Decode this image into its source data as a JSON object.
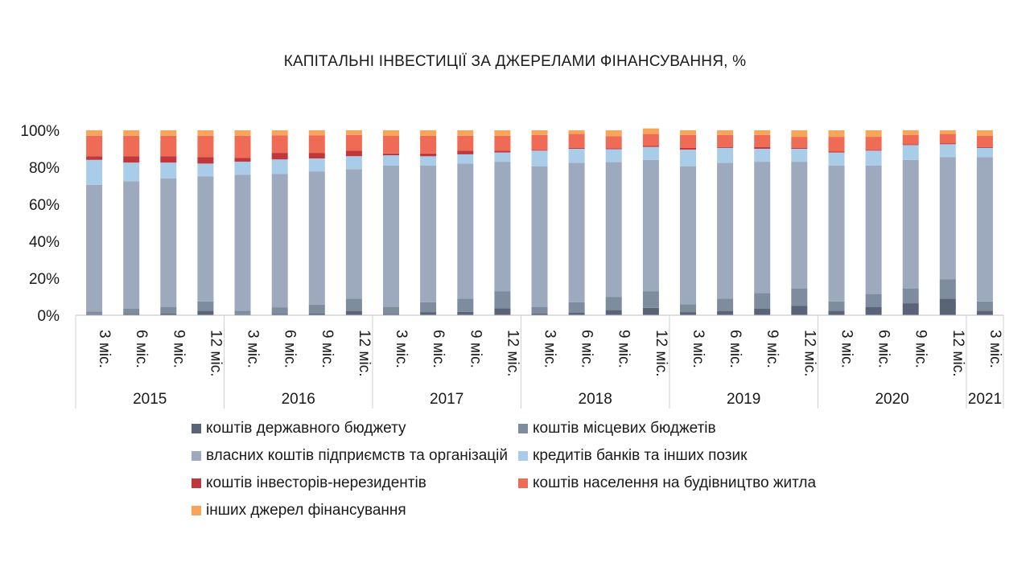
{
  "chart_data": {
    "type": "bar",
    "stacked": true,
    "percent": true,
    "title": "КАПІТАЛЬНІ ІНВЕСТИЦІЇ ЗА ДЖЕРЕЛАМИ ФІНАНСУВАННЯ, %",
    "yticks": [
      "0%",
      "20%",
      "40%",
      "60%",
      "80%",
      "100%"
    ],
    "ylim": [
      0,
      100
    ],
    "legend_position": "bottom",
    "years": [
      {
        "label": "2015",
        "count": 4
      },
      {
        "label": "2016",
        "count": 4
      },
      {
        "label": "2017",
        "count": 4
      },
      {
        "label": "2018",
        "count": 4
      },
      {
        "label": "2019",
        "count": 4
      },
      {
        "label": "2020",
        "count": 4
      },
      {
        "label": "2021",
        "count": 1
      }
    ],
    "categories": [
      "3 міс.",
      "6 міс.",
      "9 міс.",
      "12 міс.",
      "3 міс.",
      "6 міс.",
      "9 міс.",
      "12 міс.",
      "3 міс.",
      "6 міс.",
      "9 міс.",
      "12 міс.",
      "3 міс.",
      "6 міс.",
      "9 міс.",
      "12 міс.",
      "3 міс.",
      "6 міс.",
      "9 міс.",
      "12 міс.",
      "3 міс.",
      "6 міс.",
      "9 міс.",
      "12 міс.",
      "3 міс."
    ],
    "series": [
      {
        "name": "коштів державного бюджету",
        "color": "#5a6478",
        "values": [
          0.5,
          0.8,
          1.0,
          2.5,
          0.5,
          0.8,
          1.0,
          2.5,
          0.8,
          1.7,
          1.8,
          3.8,
          1.0,
          1.3,
          2.8,
          4.0,
          1.7,
          2.5,
          3.5,
          5.0,
          2.5,
          4.5,
          6.5,
          9.0,
          2.5
        ]
      },
      {
        "name": "коштів місцевих бюджетів",
        "color": "#7d8d9e",
        "values": [
          1.5,
          2.7,
          3.5,
          5.0,
          2.0,
          3.5,
          4.8,
          6.5,
          3.7,
          5.3,
          7.2,
          9.2,
          3.5,
          5.7,
          7.0,
          9.0,
          4.3,
          6.5,
          8.5,
          9.5,
          5.0,
          7.0,
          8.0,
          10.5,
          5.0
        ]
      },
      {
        "name": "власних коштів підприємств та організацій",
        "color": "#9daabd",
        "values": [
          68.5,
          69.0,
          69.5,
          67.5,
          73.5,
          72.0,
          72.0,
          70.0,
          76.5,
          74.0,
          73.0,
          70.0,
          76.0,
          75.5,
          73.0,
          71.0,
          74.5,
          73.5,
          71.0,
          68.5,
          73.5,
          69.5,
          69.5,
          66.0,
          78.0
        ]
      },
      {
        "name": "кредитів банків та інших позик",
        "color": "#a9cce9",
        "values": [
          13.5,
          10.0,
          8.5,
          7.0,
          7.0,
          8.0,
          7.0,
          7.0,
          5.5,
          5.0,
          5.0,
          5.0,
          8.5,
          7.5,
          7.0,
          7.0,
          9.0,
          8.0,
          7.0,
          7.0,
          7.0,
          8.0,
          8.0,
          7.0,
          5.0
        ]
      },
      {
        "name": "коштів інвесторів-нерезидентів",
        "color": "#c0383b",
        "values": [
          2.0,
          3.5,
          3.5,
          3.5,
          2.0,
          3.5,
          3.0,
          3.0,
          1.0,
          1.5,
          2.0,
          1.0,
          0.5,
          0.5,
          0.5,
          0.5,
          1.0,
          0.5,
          1.0,
          0.5,
          0.5,
          0.5,
          0.5,
          0.5,
          0.5
        ]
      },
      {
        "name": "коштів населення на будівництво житла",
        "color": "#ef6b55",
        "values": [
          11.0,
          11.0,
          11.0,
          11.5,
          12.0,
          9.5,
          9.5,
          8.5,
          9.5,
          9.5,
          8.0,
          8.0,
          8.0,
          7.5,
          6.5,
          6.5,
          7.0,
          6.5,
          6.5,
          6.0,
          8.0,
          7.0,
          5.0,
          5.0,
          6.0
        ]
      },
      {
        "name": "інших джерел фінансування",
        "color": "#f6a55a",
        "values": [
          3.0,
          3.0,
          3.0,
          3.0,
          3.0,
          2.7,
          2.7,
          2.5,
          3.0,
          3.0,
          3.0,
          3.0,
          2.5,
          2.0,
          3.2,
          3.0,
          2.5,
          2.5,
          2.5,
          3.5,
          3.5,
          3.5,
          2.5,
          2.0,
          3.0
        ]
      }
    ]
  }
}
